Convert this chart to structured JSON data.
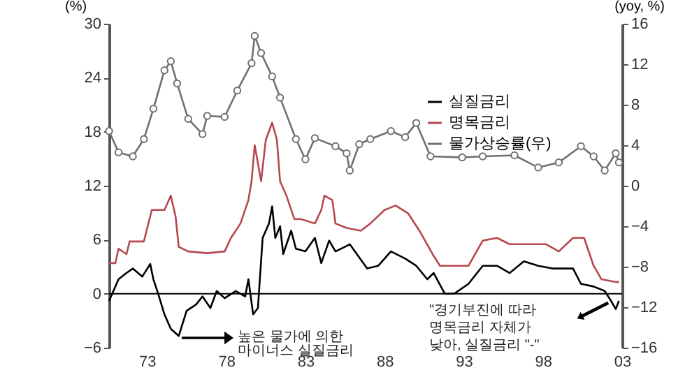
{
  "chart_data": {
    "type": "line",
    "ylabel": "(%)",
    "y2label": "(yoy, %)",
    "xlim": [
      1970.6,
      2003
    ],
    "xticks": [
      {
        "value": 1973,
        "label": "73"
      },
      {
        "value": 1978,
        "label": "78"
      },
      {
        "value": 1983,
        "label": "83"
      },
      {
        "value": 1988,
        "label": "88"
      },
      {
        "value": 1993,
        "label": "93"
      },
      {
        "value": 1998,
        "label": "98"
      },
      {
        "value": 2003,
        "label": "03"
      }
    ],
    "ylim": [
      -6,
      30
    ],
    "yticks": [
      -6,
      0,
      6,
      12,
      18,
      24,
      30
    ],
    "y2lim": [
      -16,
      16
    ],
    "y2ticks": [
      -16,
      -12,
      -8,
      -4,
      0,
      4,
      8,
      12,
      16
    ],
    "grid": false,
    "legend": "top right",
    "series": [
      {
        "name": "실질금리",
        "color": "#000000",
        "marker": "none",
        "x": [
          1970.6,
          1971.2,
          1971.7,
          1972.1,
          1972.7,
          1973.2,
          1973.4,
          1973.7,
          1974.1,
          1974.5,
          1975.0,
          1975.5,
          1976.1,
          1976.5,
          1977.0,
          1977.4,
          1977.9,
          1978.6,
          1979.2,
          1979.4,
          1979.7,
          1980.0,
          1980.3,
          1980.7,
          1980.9,
          1981.1,
          1981.4,
          1981.6,
          1982.1,
          1982.4,
          1983.0,
          1983.6,
          1984.0,
          1984.5,
          1984.9,
          1985.6,
          1985.8,
          1986.9,
          1987.6,
          1988.4,
          1989.3,
          1990.0,
          1990.7,
          1991.1,
          1991.8,
          1992.4,
          1993.3,
          1994.2,
          1995.1,
          1995.9,
          1996.8,
          1997.7,
          1998.6,
          1999.9,
          2000.4,
          2001.2,
          2001.9,
          2002.3,
          2002.6,
          2002.8
        ],
        "values": [
          -0.8,
          1.6,
          2.3,
          2.8,
          1.9,
          3.3,
          1.6,
          0,
          -2.3,
          -3.9,
          -4.7,
          -1.9,
          -1.2,
          -0.3,
          -1.6,
          0.3,
          -0.5,
          0.3,
          -0.3,
          1.6,
          -2.3,
          -1.6,
          6.2,
          7.8,
          9.7,
          6.2,
          7.5,
          4.4,
          7.0,
          5.0,
          4.7,
          6.2,
          3.4,
          5.9,
          4.7,
          5.3,
          5.5,
          2.8,
          3.1,
          4.7,
          3.9,
          3.1,
          1.6,
          2.3,
          0,
          0,
          1.1,
          3.1,
          3.1,
          2.3,
          3.6,
          3.1,
          2.8,
          2.8,
          1.1,
          0.8,
          0.3,
          -0.8,
          -1.7,
          -0.8
        ]
      },
      {
        "name": "명목금리",
        "color": "#b5484f",
        "marker": "none",
        "x": [
          1970.6,
          1971.0,
          1971.2,
          1971.7,
          1971.9,
          1972.8,
          1973.3,
          1974.1,
          1974.5,
          1974.8,
          1975.0,
          1975.6,
          1976.8,
          1977.9,
          1978.3,
          1978.9,
          1979.4,
          1979.6,
          1979.8,
          1980.2,
          1980.5,
          1980.9,
          1981.2,
          1981.4,
          1981.8,
          1982.3,
          1982.7,
          1983.6,
          1984.0,
          1984.2,
          1984.7,
          1984.9,
          1985.6,
          1986.5,
          1987.1,
          1988.0,
          1988.7,
          1989.5,
          1990.2,
          1991.1,
          1991.5,
          1993.3,
          1994.2,
          1995.1,
          1995.9,
          1998.2,
          1999.0,
          1999.9,
          2000.6,
          2001.2,
          2001.7,
          2002.6,
          2002.8
        ],
        "values": [
          3.4,
          3.4,
          5.0,
          4.4,
          5.8,
          5.8,
          9.3,
          9.3,
          10.9,
          8.6,
          5.2,
          4.7,
          4.5,
          4.7,
          6.2,
          7.8,
          10.4,
          12.5,
          16.5,
          12.5,
          17.1,
          19.0,
          17.1,
          12.5,
          10.9,
          8.3,
          8.3,
          7.8,
          9.3,
          10.9,
          10.4,
          7.8,
          7.3,
          7.0,
          7.8,
          9.3,
          9.8,
          8.9,
          7.0,
          4.2,
          3.1,
          3.1,
          5.9,
          6.2,
          5.5,
          5.5,
          4.7,
          6.2,
          6.2,
          3.1,
          1.6,
          1.3,
          1.3
        ]
      },
      {
        "name": "물가상승률(우)",
        "color": "#707070",
        "marker": "circle",
        "axis": "y2",
        "x": [
          1970.6,
          1971.2,
          1972.1,
          1972.8,
          1973.4,
          1974.1,
          1974.5,
          1974.9,
          1975.6,
          1976.5,
          1976.8,
          1977.9,
          1978.7,
          1979.6,
          1979.8,
          1980.2,
          1980.9,
          1981.4,
          1982.4,
          1983.0,
          1983.6,
          1984.9,
          1985.6,
          1985.8,
          1986.4,
          1987.1,
          1988.4,
          1989.3,
          1990.0,
          1990.9,
          1992.9,
          1994.2,
          1996.2,
          1997.7,
          1999.0,
          2000.4,
          2001.2,
          2001.9,
          2002.6,
          2002.8
        ],
        "values": [
          5.4,
          3.3,
          2.9,
          4.6,
          7.6,
          11.4,
          12.3,
          10.1,
          6.6,
          5.1,
          6.9,
          6.8,
          9.4,
          12.1,
          14.8,
          13.1,
          10.8,
          8.7,
          4.6,
          2.6,
          4.7,
          3.9,
          3.2,
          1.5,
          4.1,
          4.6,
          5.4,
          4.8,
          6.2,
          2.9,
          2.8,
          2.9,
          3.0,
          1.8,
          2.3,
          3.9,
          2.9,
          1.5,
          3.2,
          2.3
        ]
      }
    ],
    "ref_lines": [
      {
        "axis": "y",
        "value": 0,
        "color": "#000000"
      }
    ],
    "annotations": [
      "높은 물가에 의한\n마이너스 실질금리",
      "\"경기부진에 따라\n명목금리 자체가\n낮아, 실질금리 \"-\""
    ]
  }
}
